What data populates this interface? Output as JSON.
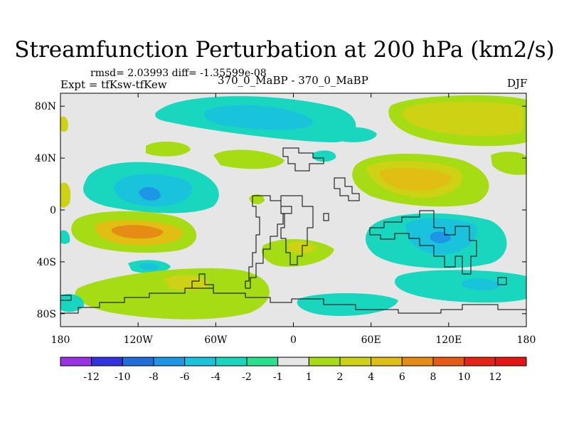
{
  "chart_data": {
    "type": "heatmap",
    "title": "Streamfunction Perturbation at 200 hPa (km2/s)",
    "stats": "rmsd= 2.03993 diff= -1.35599e-08",
    "experiment": "Expt = tfKsw-tfKew",
    "center_label": "370_0_MaBP - 370_0_MaBP",
    "season": "DJF",
    "x_ticks": [
      "180",
      "120W",
      "60W",
      "0",
      "60E",
      "120E",
      "180"
    ],
    "x_values": [
      -180,
      -120,
      -60,
      0,
      60,
      120,
      180
    ],
    "y_ticks": [
      "80N",
      "40N",
      "0",
      "40S",
      "80S"
    ],
    "y_values": [
      80,
      40,
      0,
      -40,
      -80
    ],
    "xlim": [
      -180,
      180
    ],
    "ylim": [
      -90,
      90
    ],
    "colorbar": {
      "labels": [
        "-12",
        "-10",
        "-8",
        "-6",
        "-4",
        "-2",
        "-1",
        "1",
        "2",
        "4",
        "6",
        "8",
        "10",
        "12"
      ],
      "colors": [
        "#9932e6",
        "#3232e0",
        "#1e6edc",
        "#1e96e6",
        "#19c3dc",
        "#19d7be",
        "#28e18c",
        "#e6e6e6",
        "#a5dc14",
        "#cdd214",
        "#e1be14",
        "#e68c14",
        "#e65a14",
        "#e62314",
        "#e61414"
      ]
    },
    "features": [
      {
        "name": "neg-80N-100W",
        "lon": -100,
        "lat": 78,
        "level": -3
      },
      {
        "name": "neg-80N-75W",
        "lon": -75,
        "lat": 78,
        "level": -5
      },
      {
        "name": "neg-10N-115W",
        "lon": -115,
        "lat": 12,
        "level": -6
      },
      {
        "name": "neg-15S-100E",
        "lon": 100,
        "lat": -15,
        "level": -5
      },
      {
        "name": "neg-25S-115E",
        "lon": 115,
        "lat": -25,
        "level": -7
      },
      {
        "name": "neg-45S-115W",
        "lon": -115,
        "lat": -45,
        "level": -4
      },
      {
        "name": "neg-60S-145E",
        "lon": 145,
        "lat": -60,
        "level": -4
      },
      {
        "name": "pos-78N-150E",
        "lon": 150,
        "lat": 78,
        "level": 4
      },
      {
        "name": "pos-30N-100E",
        "lon": 100,
        "lat": 28,
        "level": 5
      },
      {
        "name": "pos-15S-120W",
        "lon": -120,
        "lat": -15,
        "level": 7
      },
      {
        "name": "pos-55S-90W",
        "lon": -90,
        "lat": -60,
        "level": 3
      },
      {
        "name": "pos-30S-10E",
        "lon": 10,
        "lat": -32,
        "level": 3
      }
    ]
  }
}
